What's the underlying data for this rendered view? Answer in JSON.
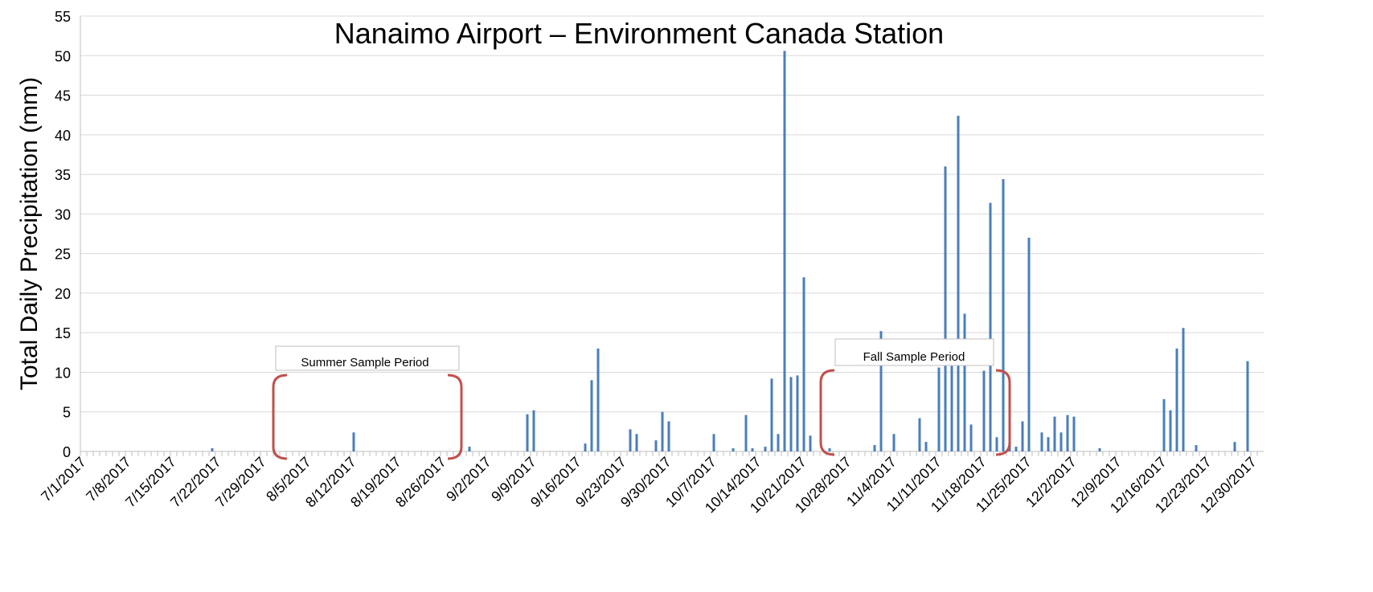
{
  "chart_data": {
    "type": "bar",
    "title": "Nanaimo Airport – Environment Canada Station",
    "y_label": "Total Daily Precipitation (mm)",
    "annotations": [
      "Summer Sample Period",
      "Fall Sample Period"
    ],
    "color": "#4a7ebb",
    "ylim": [
      0,
      55
    ],
    "yticks": [
      0,
      5,
      10,
      15,
      20,
      25,
      30,
      35,
      40,
      45,
      50,
      55
    ],
    "grid": true,
    "categories": [
      "7/1/2017",
      null,
      null,
      null,
      null,
      null,
      null,
      "7/8/2017",
      null,
      null,
      null,
      null,
      null,
      null,
      "7/15/2017",
      null,
      null,
      null,
      null,
      null,
      null,
      "7/22/2017",
      null,
      null,
      null,
      null,
      null,
      null,
      "7/29/2017",
      null,
      null,
      null,
      null,
      null,
      null,
      "8/5/2017",
      null,
      null,
      null,
      null,
      null,
      null,
      "8/12/2017",
      null,
      null,
      null,
      null,
      null,
      null,
      "8/19/2017",
      null,
      null,
      null,
      null,
      null,
      null,
      "8/26/2017",
      null,
      null,
      null,
      null,
      null,
      null,
      "9/2/2017",
      null,
      null,
      null,
      null,
      null,
      null,
      "9/9/2017",
      null,
      null,
      null,
      null,
      null,
      null,
      "9/16/2017",
      null,
      null,
      null,
      null,
      null,
      null,
      "9/23/2017",
      null,
      null,
      null,
      null,
      null,
      null,
      "9/30/2017",
      null,
      null,
      null,
      null,
      null,
      null,
      "10/7/2017",
      null,
      null,
      null,
      null,
      null,
      null,
      "10/14/2017",
      null,
      null,
      null,
      null,
      null,
      null,
      "10/21/2017",
      null,
      null,
      null,
      null,
      null,
      null,
      "10/28/2017",
      null,
      null,
      null,
      null,
      null,
      null,
      "11/4/2017",
      null,
      null,
      null,
      null,
      null,
      null,
      "11/11/2017",
      null,
      null,
      null,
      null,
      null,
      null,
      "11/18/2017",
      null,
      null,
      null,
      null,
      null,
      null,
      "11/25/2017",
      null,
      null,
      null,
      null,
      null,
      null,
      "12/2/2017",
      null,
      null,
      null,
      null,
      null,
      null,
      "12/9/2017",
      null,
      null,
      null,
      null,
      null,
      null,
      "12/16/2017",
      null,
      null,
      null,
      null,
      null,
      null,
      "12/23/2017",
      null,
      null,
      null,
      null,
      null,
      null,
      "12/30/2017",
      null
    ],
    "values": [
      0,
      0,
      0,
      0,
      0,
      0,
      0,
      0,
      0,
      0,
      0,
      0,
      0,
      0,
      0,
      0,
      0,
      0,
      0,
      0,
      0.4,
      0,
      0,
      0,
      0,
      0,
      0,
      0,
      0,
      0,
      0,
      0,
      0,
      0,
      0,
      0,
      0,
      0,
      0,
      0,
      0,
      0,
      2.4,
      0,
      0,
      0,
      0,
      0,
      0,
      0,
      0,
      0,
      0,
      0,
      0,
      0,
      0,
      0,
      0,
      0,
      0.6,
      0,
      0,
      0,
      0,
      0,
      0,
      0,
      0,
      4.7,
      5.2,
      0,
      0,
      0,
      0,
      0,
      0,
      0,
      1.0,
      9.0,
      13,
      0,
      0,
      0,
      0,
      2.8,
      2.2,
      0,
      0,
      1.4,
      5,
      3.8,
      0,
      0,
      0,
      0,
      0,
      0,
      2.2,
      0,
      0,
      0.4,
      0,
      4.6,
      0.4,
      0,
      0.6,
      9.2,
      2.2,
      50.6,
      9.4,
      9.6,
      22,
      2,
      0,
      0,
      0.4,
      0,
      0,
      0,
      0,
      0,
      0,
      0.8,
      15.2,
      0,
      2.2,
      0,
      0,
      0,
      4.2,
      1.2,
      0,
      10.6,
      36,
      10.8,
      42.4,
      17.4,
      3.4,
      0,
      10.2,
      31.4,
      1.8,
      34.4,
      8.4,
      0.6,
      3.8,
      27,
      0,
      2.4,
      1.8,
      4.4,
      2.4,
      4.6,
      4.4,
      0,
      0,
      0,
      0.4,
      0,
      0,
      0,
      0,
      0,
      0,
      0,
      0,
      0,
      6.6,
      5.2,
      13,
      15.6,
      0,
      0.8,
      0,
      0,
      0,
      0,
      0,
      1.2,
      0,
      11.4,
      0,
      0
    ]
  }
}
